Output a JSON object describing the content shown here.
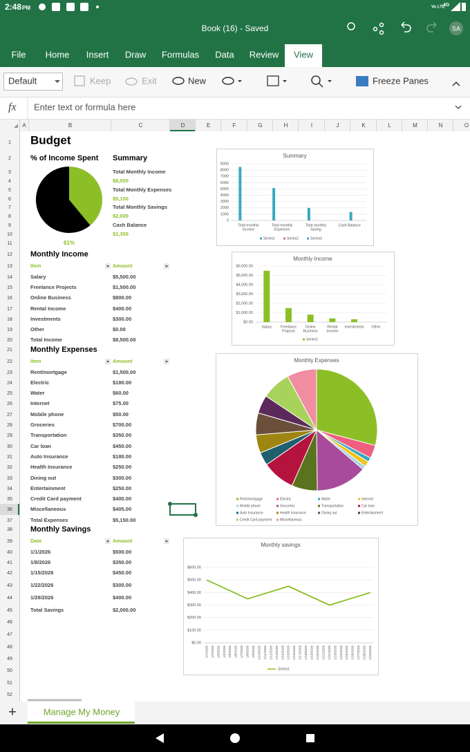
{
  "status_bar": {
    "time": "2:48",
    "time_suffix": "PM",
    "volte": "Vo LTE",
    "network": "4G"
  },
  "title_bar": {
    "title": "Book (16) - Saved",
    "avatar": "SA"
  },
  "ribbon": {
    "tabs": [
      "File",
      "Home",
      "Insert",
      "Draw",
      "Formulas",
      "Data",
      "Review",
      "View"
    ],
    "active_tab": "View",
    "tools": {
      "style": "Default",
      "keep": "Keep",
      "exit": "Exit",
      "new": "New",
      "freeze": "Freeze Panes"
    }
  },
  "formula_bar": {
    "fx": "fx",
    "placeholder": "Enter text or formula here"
  },
  "grid": {
    "columns": [
      "A",
      "B",
      "C",
      "D",
      "E",
      "F",
      "G",
      "H",
      "I",
      "J",
      "K",
      "L",
      "M",
      "N",
      "O"
    ],
    "rows": [
      1,
      2,
      3,
      4,
      5,
      6,
      7,
      8,
      9,
      10,
      11,
      12,
      13,
      14,
      15,
      16,
      17,
      18,
      19,
      20,
      21,
      22,
      23,
      24,
      25,
      26,
      27,
      28,
      29,
      30,
      31,
      32,
      33,
      34,
      35,
      36,
      37,
      38,
      39,
      40,
      41,
      42,
      43,
      44,
      45,
      46,
      47,
      48,
      49,
      50,
      51,
      52
    ],
    "selected_column": "D",
    "selected_row": 36
  },
  "sheet": {
    "title": "Budget",
    "percent_heading": "% of Income Spent",
    "summary": {
      "heading": "Summary",
      "items": [
        {
          "label": "Total Monthly Income",
          "value": "$8,500"
        },
        {
          "label": "Total Monthly Expenses",
          "value": "$5,150"
        },
        {
          "label": "Total Monthly Savings",
          "value": "$2,000"
        },
        {
          "label": "Cash Balance",
          "value": "$1,350"
        }
      ]
    },
    "income": {
      "heading": "Monthly Income",
      "header": [
        "Item",
        "Amount"
      ],
      "rows": [
        [
          "Salary",
          "$5,500.00"
        ],
        [
          "Freelance Projects",
          "$1,500.00"
        ],
        [
          "Online Business",
          "$800.00"
        ],
        [
          "Rental Income",
          "$400.00"
        ],
        [
          "Investments",
          "$300.00"
        ],
        [
          "Other",
          "$0.00"
        ]
      ],
      "total": [
        "Total Income",
        "$8,500.00"
      ]
    },
    "expenses": {
      "heading": "Monthly Expenses",
      "header": [
        "Item",
        "Amount"
      ],
      "rows": [
        [
          "Rent/mortgage",
          "$1,500.00"
        ],
        [
          "Electric",
          "$180.00"
        ],
        [
          "Water",
          "$60.00"
        ],
        [
          "Internet",
          "$75.00"
        ],
        [
          "Mobile phone",
          "$50.00"
        ],
        [
          "Groceries",
          "$700.00"
        ],
        [
          "Transportation",
          "$350.00"
        ],
        [
          "Car loan",
          "$450.00"
        ],
        [
          "Auto Insurance",
          "$180.00"
        ],
        [
          "Health Insurance",
          "$250.00"
        ],
        [
          "Dining out",
          "$300.00"
        ],
        [
          "Entertainment",
          "$250.00"
        ],
        [
          "Credit Card payment",
          "$400.00"
        ],
        [
          "Miscellaneous",
          "$405.00"
        ]
      ],
      "total": [
        "Total Expenses",
        "$5,150.00"
      ]
    },
    "savings": {
      "heading": "Monthly Savings",
      "header": [
        "Date",
        "Amount"
      ],
      "rows": [
        [
          "1/1/2026",
          "$500.00"
        ],
        [
          "1/8/2026",
          "$350.00"
        ],
        [
          "1/15/2026",
          "$450.00"
        ],
        [
          "1/22/2026",
          "$300.00"
        ],
        [
          "1/29/2026",
          "$400.00"
        ]
      ],
      "total": [
        "Total Savings",
        "$2,000.00"
      ]
    }
  },
  "charts": {
    "percent": {
      "type": "pie",
      "value": 61,
      "value_label": "61%",
      "colors": [
        "#000000",
        "#8cbf26"
      ]
    },
    "summary": {
      "type": "bar",
      "title": "Summary",
      "categories": [
        [
          "Total monthly",
          "Income"
        ],
        [
          "Total monthly",
          "Expenses"
        ],
        [
          "Total monthly",
          "Saving"
        ],
        [
          "Cash Balance"
        ]
      ],
      "values": [
        8500,
        5150,
        2000,
        1350
      ],
      "color": "#3aa8c1",
      "ylim": [
        0,
        9000
      ],
      "yticks": [
        0,
        1000,
        2000,
        3000,
        4000,
        5000,
        6000,
        7000,
        8000,
        9000
      ],
      "grid": true,
      "legend": [
        {
          "name": "Series1",
          "color": "#3aa8c1"
        },
        {
          "name": "Series2",
          "color": "#e8637a"
        },
        {
          "name": "Series3",
          "color": "#3aa8c1"
        }
      ]
    },
    "income": {
      "type": "bar",
      "title": "Monthly Income",
      "categories": [
        [
          "Salary"
        ],
        [
          "Freelance",
          "Projects"
        ],
        [
          "Online",
          "Business"
        ],
        [
          "Rental",
          "Income"
        ],
        [
          "Investments"
        ],
        [
          "Other"
        ]
      ],
      "values": [
        5500,
        1500,
        800,
        400,
        300,
        0
      ],
      "color": "#8cbf26",
      "ylim": [
        0,
        6000
      ],
      "yticks": [
        {
          "value": 0,
          "label": "$0.00"
        },
        {
          "value": 1000,
          "label": "$1,000.00"
        },
        {
          "value": 2000,
          "label": "$2,000.00"
        },
        {
          "value": 3000,
          "label": "$3,000.00"
        },
        {
          "value": 4000,
          "label": "$4,000.00"
        },
        {
          "value": 5000,
          "label": "$5,000.00"
        },
        {
          "value": 6000,
          "label": "$6,000.00"
        }
      ],
      "grid": true,
      "legend": [
        {
          "name": "Series1",
          "color": "#8cbf26"
        }
      ]
    },
    "expenses": {
      "type": "pie",
      "title": "Monthly Expenses",
      "categories": [
        "Rent/mortgage",
        "Electric",
        "Water",
        "Internet",
        "Mobile phone",
        "Groceries",
        "Transportation",
        "Car loan",
        "Auto Insurance",
        "Health Insurance",
        "Dining out",
        "Entertainment",
        "Credit Card payment",
        "Miscellaneous"
      ],
      "values": [
        1500,
        180,
        60,
        75,
        50,
        700,
        350,
        450,
        180,
        250,
        300,
        250,
        400,
        405
      ],
      "colors": [
        "#8cbf26",
        "#ef5f7f",
        "#3aa8c1",
        "#f0c419",
        "#9fd3e6",
        "#a84b9a",
        "#5a731e",
        "#b5123e",
        "#1f5f6e",
        "#9e8511",
        "#6b4f3a",
        "#5b2a5a",
        "#a7d35a",
        "#f08da0"
      ]
    },
    "savings": {
      "type": "line",
      "title": "Monthly savings",
      "ticks": [
        "1/1/2026",
        "1/2/2026",
        "1/3/2026",
        "1/4/2026",
        "1/5/2026",
        "1/6/2026",
        "1/7/2026",
        "1/8/2026",
        "1/9/2026",
        "1/10/2026",
        "1/11/2026",
        "1/12/2026",
        "1/13/2026",
        "1/14/2026",
        "1/15/2026",
        "1/16/2026",
        "1/17/2026",
        "1/18/2026",
        "1/19/2026",
        "1/20/2026",
        "1/21/2026",
        "1/22/2026",
        "1/23/2026",
        "1/24/2026",
        "1/25/2026",
        "1/26/2026",
        "1/27/2026",
        "1/28/2026",
        "1/29/2026"
      ],
      "x": [
        "1/1/2026",
        "1/8/2026",
        "1/15/2026",
        "1/22/2026",
        "1/29/2026"
      ],
      "values": [
        500,
        350,
        450,
        300,
        400
      ],
      "color": "#8cbf26",
      "ylim": [
        0,
        600
      ],
      "yticks": [
        {
          "value": 0,
          "label": "$0.00"
        },
        {
          "value": 100,
          "label": "$100.00"
        },
        {
          "value": 200,
          "label": "$200.00"
        },
        {
          "value": 300,
          "label": "$300.00"
        },
        {
          "value": 400,
          "label": "$400.00"
        },
        {
          "value": 500,
          "label": "$500.00"
        },
        {
          "value": 600,
          "label": "$600.00"
        }
      ],
      "grid": true,
      "legend": [
        {
          "name": "Series1",
          "color": "#8cbf26"
        }
      ]
    }
  },
  "sheet_tab": "Manage My Money",
  "add_sheet": "+"
}
